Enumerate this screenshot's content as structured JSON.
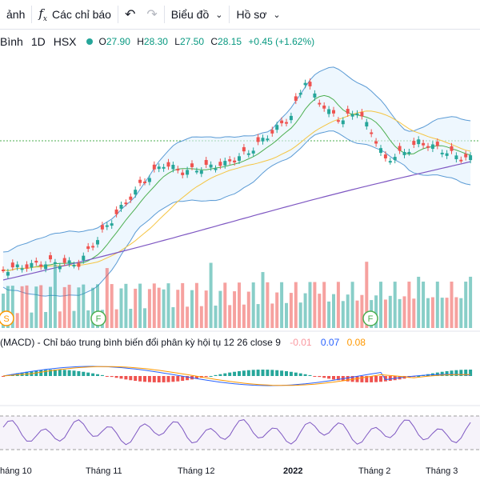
{
  "toolbar": {
    "partial_label": "ảnh",
    "indicators_icon": "fx-icon",
    "indicators_label": "Các chỉ báo",
    "undo_icon": "undo-icon",
    "redo_icon": "redo-icon",
    "chart_label": "Biểu đồ",
    "profile_label": "Hồ sơ"
  },
  "legend": {
    "symbol": "Bình",
    "interval": "1D",
    "exchange": "HSX",
    "open_label": "O",
    "open": "27.90",
    "high_label": "H",
    "high": "28.30",
    "low_label": "L",
    "low": "27.50",
    "close_label": "C",
    "close": "28.15",
    "change": "+0.45 (+1.62%)"
  },
  "macd": {
    "title": "(MACD) - Chỉ báo trung bình biến đổi phân kỳ hội tụ 12 26 close 9",
    "hist": "-0.01",
    "macd_value": "0.07",
    "signal_value": "0.08"
  },
  "markers": [
    "S",
    "F",
    "F"
  ],
  "x_axis": [
    {
      "label": "háng 10",
      "bold": false
    },
    {
      "label": "Tháng 11",
      "bold": false
    },
    {
      "label": "Tháng 12",
      "bold": false
    },
    {
      "label": "2022",
      "bold": true
    },
    {
      "label": "Tháng 2",
      "bold": false
    },
    {
      "label": "Tháng 3",
      "bold": false
    }
  ],
  "colors": {
    "up": "#26a69a",
    "down": "#ef5350",
    "bollinger": "#5b9bd5",
    "ma_fast": "#4caf50",
    "ma_mid": "#f5c542",
    "ma_slow": "#7e57c2",
    "macd": "#2962ff",
    "signal": "#ff9800",
    "rsi": "#7e57c2"
  }
}
